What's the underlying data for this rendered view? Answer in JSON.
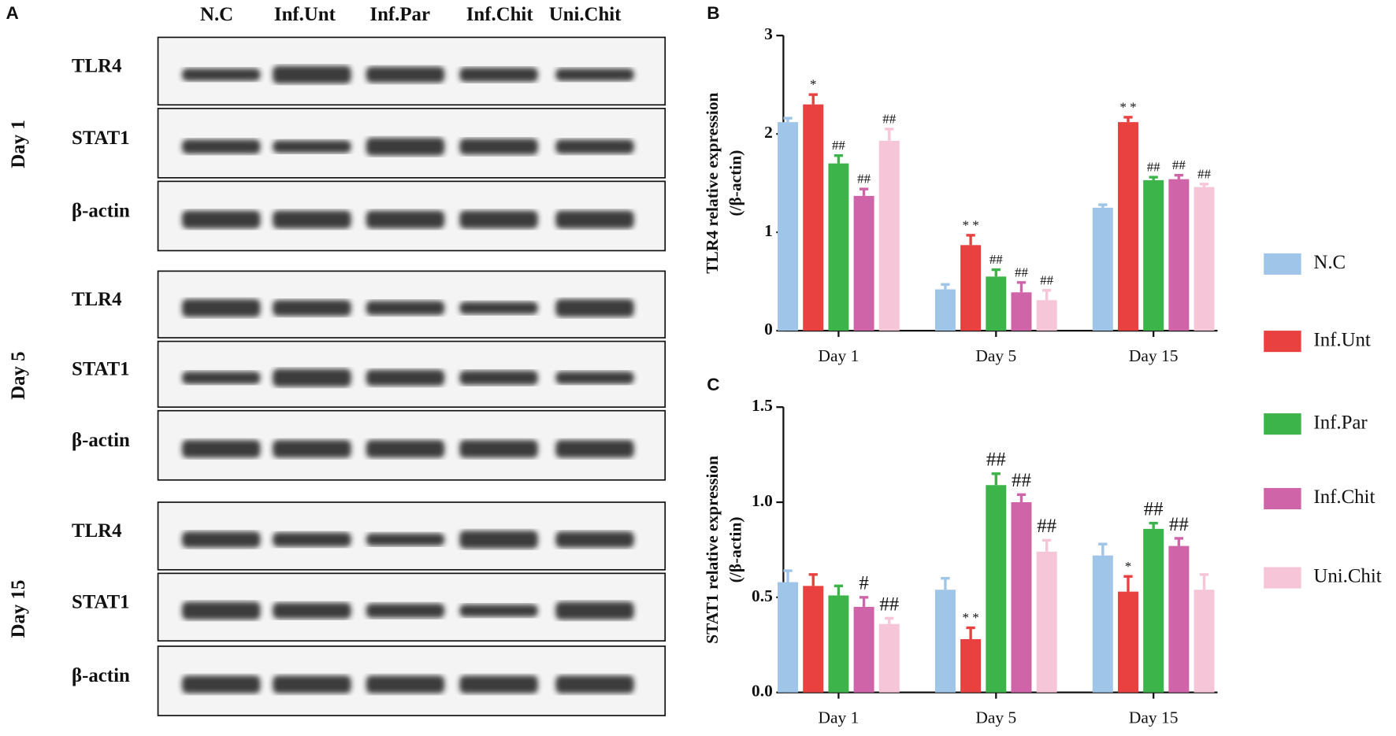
{
  "panel_a": {
    "label": "A",
    "lanes": [
      "N.C",
      "Inf.Unt",
      "Inf.Par",
      "Inf.Chit",
      "Uni.Chit"
    ],
    "groups": [
      {
        "day": "Day 1",
        "rows": [
          "TLR4",
          "STAT1",
          "β-actin"
        ]
      },
      {
        "day": "Day 5",
        "rows": [
          "TLR4",
          "STAT1",
          "β-actin"
        ]
      },
      {
        "day": "Day 15",
        "rows": [
          "TLR4",
          "STAT1",
          "β-actin"
        ]
      }
    ]
  },
  "chart_data": [
    {
      "type": "bar",
      "panel": "B",
      "ylabel": [
        "TLR4 relative expression",
        "(/β-actin)"
      ],
      "categories": [
        "Day 1",
        "Day 5",
        "Day 15"
      ],
      "ylim": [
        0,
        3
      ],
      "yticks": [
        0,
        1,
        2,
        3
      ],
      "legend": "right",
      "series": [
        {
          "name": "N.C",
          "color": "#9fc5e8",
          "values": [
            2.12,
            0.42,
            1.25
          ],
          "errors": [
            0.04,
            0.05,
            0.03
          ],
          "annotations": [
            null,
            null,
            null
          ]
        },
        {
          "name": "Inf.Unt",
          "color": "#e8413f",
          "values": [
            2.3,
            0.87,
            2.12
          ],
          "errors": [
            0.1,
            0.1,
            0.05
          ],
          "annotations": [
            "*",
            "* *",
            "* *"
          ]
        },
        {
          "name": "Inf.Par",
          "color": "#3cb44a",
          "values": [
            1.7,
            0.55,
            1.53
          ],
          "errors": [
            0.08,
            0.07,
            0.03
          ],
          "annotations": [
            "##",
            "##",
            "##"
          ]
        },
        {
          "name": "Inf.Chit",
          "color": "#d064a8",
          "values": [
            1.37,
            0.39,
            1.54
          ],
          "errors": [
            0.07,
            0.1,
            0.04
          ],
          "annotations": [
            "##",
            "##",
            "##"
          ]
        },
        {
          "name": "Uni.Chit",
          "color": "#f6c5d8",
          "values": [
            1.93,
            0.31,
            1.46
          ],
          "errors": [
            0.12,
            0.1,
            0.03
          ],
          "annotations": [
            "##",
            "##",
            "##"
          ]
        }
      ]
    },
    {
      "type": "bar",
      "panel": "C",
      "ylabel": [
        "STAT1 relative expression",
        "(/β-actin)"
      ],
      "categories": [
        "Day 1",
        "Day 5",
        "Day 15"
      ],
      "ylim": [
        0,
        1.5
      ],
      "yticks": [
        {
          "value": 0,
          "label": "0.0"
        },
        0.5,
        {
          "value": 1,
          "label": "1.0"
        },
        1.5
      ],
      "series": [
        {
          "color": "#9fc5e8",
          "values": [
            0.58,
            0.54,
            0.72
          ],
          "errors": [
            0.06,
            0.06,
            0.06
          ],
          "annotations": [
            null,
            null,
            null
          ]
        },
        {
          "color": "#e8413f",
          "values": [
            0.56,
            0.28,
            0.53
          ],
          "errors": [
            0.06,
            0.06,
            0.08
          ],
          "annotations": [
            null,
            "* *",
            "*"
          ]
        },
        {
          "color": "#3cb44a",
          "values": [
            0.51,
            1.09,
            0.86
          ],
          "errors": [
            0.05,
            0.06,
            0.03
          ],
          "annotations": [
            null,
            "##",
            "##"
          ]
        },
        {
          "color": "#d064a8",
          "values": [
            0.45,
            1.0,
            0.77
          ],
          "errors": [
            0.05,
            0.04,
            0.04
          ],
          "annotations": [
            "#",
            "##",
            "##"
          ]
        },
        {
          "color": "#f6c5d8",
          "values": [
            0.36,
            0.74,
            0.54
          ],
          "errors": [
            0.03,
            0.06,
            0.08
          ],
          "annotations": [
            "##",
            "##",
            null
          ]
        }
      ]
    }
  ]
}
